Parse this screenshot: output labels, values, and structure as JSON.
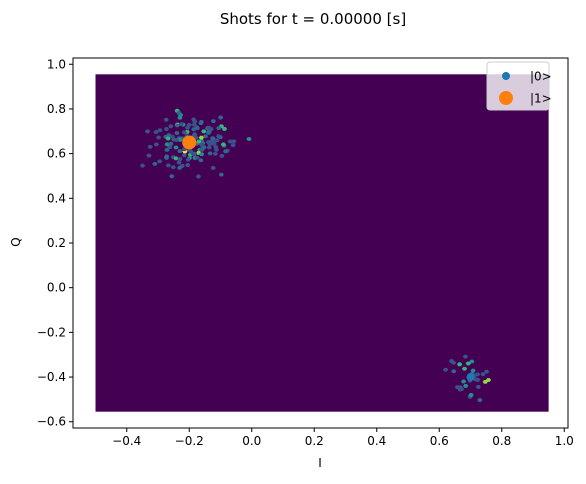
{
  "chart_data": {
    "type": "scatter",
    "subtype": "hexbin",
    "title": "Shots for t = 0.00000 [s]",
    "xlabel": "I",
    "ylabel": "Q",
    "xlim": [
      -0.572,
      1.012
    ],
    "ylim": [
      -0.628,
      1.028
    ],
    "xticks": [
      -0.4,
      -0.2,
      0.0,
      0.2,
      0.4,
      0.6,
      0.8,
      1.0
    ],
    "xtick_labels": [
      "−0.4",
      "−0.2",
      "0.0",
      "0.2",
      "0.4",
      "0.6",
      "0.8",
      "1.0"
    ],
    "yticks": [
      -0.6,
      -0.4,
      -0.2,
      0.0,
      0.2,
      0.4,
      0.6,
      0.8,
      1.0
    ],
    "ytick_labels": [
      "−0.6",
      "−0.4",
      "−0.2",
      "0.0",
      "0.2",
      "0.4",
      "0.6",
      "0.8",
      "1.0"
    ],
    "grid": false,
    "legend_position": "top-right",
    "hexbin": {
      "extent_x": [
        -0.5,
        0.95
      ],
      "extent_y": [
        -0.555,
        0.955
      ],
      "background_color": "#440154",
      "clusters": [
        {
          "center": [
            -0.2,
            0.65
          ],
          "spread_x": 0.13,
          "spread_y": 0.11,
          "count": 140
        },
        {
          "center": [
            0.7,
            -0.4
          ],
          "spread_x": 0.07,
          "spread_y": 0.09,
          "count": 30
        }
      ]
    },
    "series": [
      {
        "name": "|0>",
        "x": [
          0.7
        ],
        "y": [
          -0.4
        ],
        "color": "#1f77b4"
      },
      {
        "name": "|1>",
        "x": [
          -0.2
        ],
        "y": [
          0.65
        ],
        "color": "#ff7f0e"
      }
    ]
  }
}
